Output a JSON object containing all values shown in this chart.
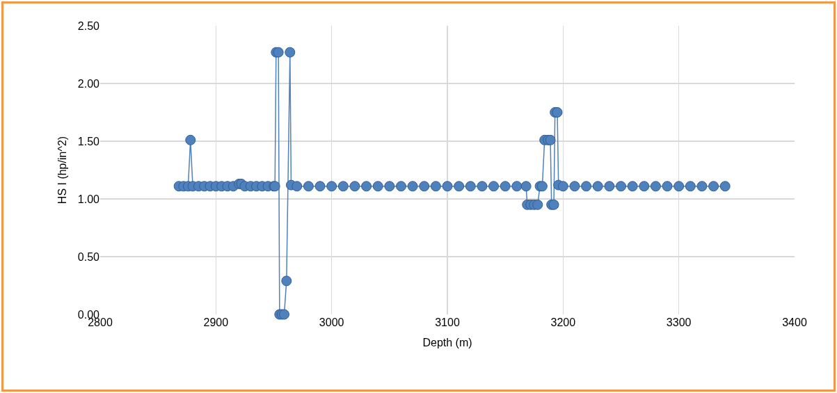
{
  "chart_data": {
    "type": "line",
    "xlabel": "Depth (m)",
    "ylabel": "HS I (hp/in^2)",
    "x": [
      2868,
      2872,
      2876,
      2878,
      2880,
      2885,
      2890,
      2895,
      2900,
      2905,
      2910,
      2915,
      2920,
      2922,
      2925,
      2930,
      2935,
      2940,
      2945,
      2950,
      2951,
      2952,
      2954,
      2955,
      2957,
      2959,
      2961,
      2964,
      2965,
      2970,
      2980,
      2990,
      3000,
      3010,
      3020,
      3030,
      3040,
      3050,
      3060,
      3070,
      3080,
      3090,
      3100,
      3110,
      3120,
      3130,
      3140,
      3150,
      3160,
      3168,
      3169,
      3172,
      3175,
      3178,
      3180,
      3182,
      3184,
      3187,
      3189,
      3190,
      3192,
      3193,
      3195,
      3196,
      3200,
      3210,
      3220,
      3230,
      3240,
      3250,
      3260,
      3270,
      3280,
      3290,
      3300,
      3310,
      3320,
      3330,
      3340
    ],
    "series": [
      {
        "color": "#4f81bd",
        "values": [
          1.11,
          1.11,
          1.11,
          1.51,
          1.11,
          1.11,
          1.11,
          1.11,
          1.11,
          1.11,
          1.11,
          1.11,
          1.13,
          1.13,
          1.11,
          1.11,
          1.11,
          1.11,
          1.11,
          1.11,
          1.11,
          2.27,
          2.27,
          0,
          0,
          0,
          0.29,
          2.27,
          1.12,
          1.11,
          1.11,
          1.11,
          1.11,
          1.11,
          1.11,
          1.11,
          1.11,
          1.11,
          1.11,
          1.11,
          1.11,
          1.11,
          1.11,
          1.11,
          1.11,
          1.11,
          1.11,
          1.11,
          1.11,
          1.11,
          0.95,
          0.95,
          0.95,
          0.95,
          1.11,
          1.11,
          1.51,
          1.51,
          1.51,
          0.95,
          0.95,
          1.75,
          1.75,
          1.12,
          1.11,
          1.11,
          1.11,
          1.11,
          1.11,
          1.11,
          1.11,
          1.11,
          1.11,
          1.11,
          1.11,
          1.11,
          1.11,
          1.11,
          1.11
        ]
      }
    ],
    "xlim": [
      2800,
      3400
    ],
    "xticks": [
      2800,
      2900,
      3000,
      3100,
      3200,
      3300,
      3400
    ],
    "ylim": [
      0,
      2.5
    ],
    "yticks": [
      {
        "value": 0,
        "label": "0.00"
      },
      {
        "value": 0.5,
        "label": "0.50"
      },
      {
        "value": 1,
        "label": "1.00"
      },
      {
        "value": 1.5,
        "label": "1.50"
      },
      {
        "value": 2,
        "label": "2.00"
      },
      {
        "value": 2.5,
        "label": "2.50"
      }
    ],
    "grid": true,
    "marker": "circle",
    "line_style": "solid"
  }
}
